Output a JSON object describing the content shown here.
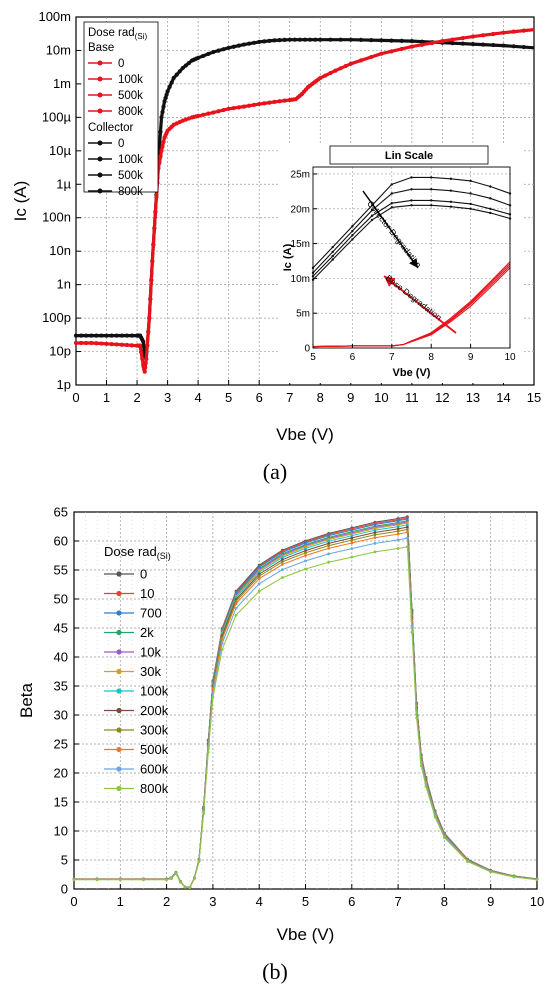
{
  "chart_data": [
    {
      "type": "line",
      "caption": "(a)",
      "xlabel": "Vbe (V)",
      "ylabel": "Ic (A)",
      "xlim": [
        0,
        15
      ],
      "ylim": [
        1e-12,
        0.1
      ],
      "yscale": "log",
      "grid": true,
      "x_ticks": [
        "0",
        "1",
        "2",
        "3",
        "4",
        "5",
        "6",
        "7",
        "8",
        "9",
        "10",
        "11",
        "12",
        "13",
        "14",
        "15"
      ],
      "y_ticks": [
        "1p",
        "10p",
        "100p",
        "1n",
        "10n",
        "100n",
        "1µ",
        "10µ",
        "100µ",
        "1m",
        "10m",
        "100m"
      ],
      "legend": {
        "position": "top-left",
        "title": "Dose rad",
        "title_sub": "(Si)",
        "groups": [
          {
            "name": "Base",
            "color": "#e8121b",
            "entries": [
              "0",
              "100k",
              "500k",
              "800k"
            ]
          },
          {
            "name": "Collector",
            "color": "#111111",
            "entries": [
              "0",
              "100k",
              "500k",
              "800k"
            ]
          }
        ]
      },
      "series": [
        {
          "group": "Collector",
          "color": "#111111",
          "x": [
            0,
            0.5,
            1,
            1.5,
            2,
            2.1,
            2.2,
            2.25,
            2.3,
            2.4,
            2.5,
            2.6,
            2.7,
            2.8,
            2.9,
            3,
            3.2,
            3.5,
            3.8,
            4,
            4.5,
            5,
            5.5,
            6,
            6.5,
            7,
            7.5,
            8,
            9,
            10,
            11,
            12,
            13,
            14,
            15
          ],
          "y": [
            3e-11,
            3e-11,
            3e-11,
            3e-11,
            3e-11,
            3e-11,
            2e-11,
            8e-12,
            6e-12,
            1e-10,
            5e-09,
            1.5e-07,
            5e-06,
            0.0001,
            0.0003,
            0.0006,
            0.0015,
            0.003,
            0.005,
            0.006,
            0.009,
            0.012,
            0.015,
            0.018,
            0.02,
            0.021,
            0.021,
            0.021,
            0.021,
            0.02,
            0.019,
            0.017,
            0.0155,
            0.014,
            0.012
          ]
        },
        {
          "group": "Base",
          "color": "#e8121b",
          "x": [
            0,
            0.5,
            1,
            1.5,
            2,
            2.1,
            2.2,
            2.25,
            2.3,
            2.4,
            2.5,
            2.6,
            2.7,
            2.8,
            2.9,
            3,
            3.2,
            3.5,
            3.8,
            4,
            4.5,
            5,
            5.5,
            6,
            6.5,
            7,
            7.2,
            7.4,
            7.6,
            7.8,
            8,
            8.5,
            9,
            10,
            11,
            12,
            13,
            14,
            15
          ],
          "y": [
            1.8e-11,
            1.8e-11,
            1.7e-11,
            1.6e-11,
            1.5e-11,
            1.5e-11,
            4e-12,
            2.5e-12,
            6e-12,
            1e-10,
            5e-09,
            1.5e-07,
            3e-06,
            1e-05,
            2.5e-05,
            4e-05,
            6e-05,
            8e-05,
            0.0001,
            0.00011,
            0.00014,
            0.00018,
            0.00021,
            0.00025,
            0.00029,
            0.00033,
            0.00035,
            0.0005,
            0.0008,
            0.0011,
            0.0015,
            0.0025,
            0.004,
            0.008,
            0.013,
            0.019,
            0.026,
            0.034,
            0.042
          ]
        }
      ],
      "inset": {
        "title": "Lin Scale",
        "xlabel": "Vbe (V)",
        "ylabel": "Ic (A)",
        "xlim": [
          5,
          10
        ],
        "ylim": [
          0,
          0.026
        ],
        "x_ticks": [
          "5",
          "6",
          "7",
          "8",
          "9",
          "10"
        ],
        "y_ticks": [
          "0",
          "5m",
          "10m",
          "15m",
          "20m",
          "25m"
        ],
        "annotations": [
          "Collector Degradation",
          "Base Degradation"
        ],
        "collector_series": [
          {
            "x": [
              5,
              5.5,
              6,
              6.5,
              7,
              7.5,
              8,
              8.5,
              9,
              9.5,
              10
            ],
            "y": [
              0.0115,
              0.0145,
              0.0175,
              0.0205,
              0.0235,
              0.0245,
              0.0245,
              0.0243,
              0.024,
              0.0232,
              0.0222
            ]
          },
          {
            "x": [
              5,
              5.5,
              6,
              6.5,
              7,
              7.5,
              8,
              8.5,
              9,
              9.5,
              10
            ],
            "y": [
              0.0108,
              0.0138,
              0.0168,
              0.0198,
              0.0222,
              0.0228,
              0.0228,
              0.0226,
              0.0222,
              0.0215,
              0.0205
            ]
          },
          {
            "x": [
              5,
              5.5,
              6,
              6.5,
              7,
              7.5,
              8,
              8.5,
              9,
              9.5,
              10
            ],
            "y": [
              0.0103,
              0.0132,
              0.0162,
              0.019,
              0.0208,
              0.0212,
              0.0212,
              0.021,
              0.0207,
              0.02,
              0.0192
            ]
          },
          {
            "x": [
              5,
              5.5,
              6,
              6.5,
              7,
              7.5,
              8,
              8.5,
              9,
              9.5,
              10
            ],
            "y": [
              0.0098,
              0.0127,
              0.0156,
              0.0184,
              0.0202,
              0.0205,
              0.0205,
              0.0203,
              0.02,
              0.0194,
              0.0186
            ]
          }
        ],
        "base_series": [
          {
            "x": [
              5,
              6,
              7,
              7.3,
              7.5,
              8,
              8.5,
              9,
              9.5,
              10
            ],
            "y": [
              0.0002,
              0.0003,
              0.0003,
              0.0005,
              0.001,
              0.0022,
              0.0043,
              0.0067,
              0.0095,
              0.0124
            ]
          },
          {
            "x": [
              5,
              6,
              7,
              7.3,
              7.5,
              8,
              8.5,
              9,
              9.5,
              10
            ],
            "y": [
              0.0002,
              0.0003,
              0.0003,
              0.0005,
              0.001,
              0.0021,
              0.0041,
              0.0065,
              0.0093,
              0.0121
            ]
          },
          {
            "x": [
              5,
              6,
              7,
              7.3,
              7.5,
              8,
              8.5,
              9,
              9.5,
              10
            ],
            "y": [
              0.0002,
              0.0003,
              0.0003,
              0.0005,
              0.001,
              0.002,
              0.004,
              0.0063,
              0.009,
              0.0118
            ]
          },
          {
            "x": [
              5,
              6,
              7,
              7.3,
              7.5,
              8,
              8.5,
              9,
              9.5,
              10
            ],
            "y": [
              0.0002,
              0.0003,
              0.0003,
              0.0005,
              0.0009,
              0.0019,
              0.0038,
              0.006,
              0.0087,
              0.0115
            ]
          }
        ]
      }
    },
    {
      "type": "line",
      "caption": "(b)",
      "xlabel": "Vbe (V)",
      "ylabel": "Beta",
      "xlim": [
        0,
        10
      ],
      "ylim": [
        0,
        65
      ],
      "grid": true,
      "x_ticks": [
        "0",
        "1",
        "2",
        "3",
        "4",
        "5",
        "6",
        "7",
        "8",
        "9",
        "10"
      ],
      "y_ticks": [
        "0",
        "5",
        "10",
        "15",
        "20",
        "25",
        "30",
        "35",
        "40",
        "45",
        "50",
        "55",
        "60",
        "65"
      ],
      "legend": {
        "position": "left",
        "title": "Dose rad",
        "title_sub": "(Si)"
      },
      "series": [
        {
          "name": "0",
          "color": "#555555",
          "max": 64.2
        },
        {
          "name": "10",
          "color": "#e8412c",
          "max": 64.0
        },
        {
          "name": "700",
          "color": "#2f7fd1",
          "max": 63.8
        },
        {
          "name": "2k",
          "color": "#22a46b",
          "max": 63.5
        },
        {
          "name": "10k",
          "color": "#9b59d0",
          "max": 63.3
        },
        {
          "name": "30k",
          "color": "#d4a017",
          "max": 63.1
        },
        {
          "name": "100k",
          "color": "#17c3c3",
          "max": 62.8
        },
        {
          "name": "200k",
          "color": "#7a4a3a",
          "max": 62.4
        },
        {
          "name": "300k",
          "color": "#8a8a1a",
          "max": 62.0
        },
        {
          "name": "500k",
          "color": "#f07820",
          "max": 61.5
        },
        {
          "name": "600k",
          "color": "#6aa6e8",
          "max": 60.5
        },
        {
          "name": "800k",
          "color": "#8cc63f",
          "max": 59.0
        }
      ],
      "shape": {
        "x": [
          0,
          0.5,
          1,
          1.5,
          2,
          2.1,
          2.2,
          2.3,
          2.4,
          2.5,
          2.6,
          2.7,
          2.8,
          2.9,
          3,
          3.2,
          3.5,
          4,
          4.5,
          5,
          5.5,
          6,
          6.5,
          7,
          7.2,
          7.3,
          7.4,
          7.5,
          7.6,
          7.8,
          8,
          8.5,
          9,
          9.5,
          10
        ],
        "f": [
          0.027,
          0.027,
          0.027,
          0.027,
          0.027,
          0.03,
          0.045,
          0.02,
          0.005,
          0.004,
          0.03,
          0.08,
          0.22,
          0.4,
          0.56,
          0.7,
          0.8,
          0.87,
          0.91,
          0.935,
          0.955,
          0.97,
          0.985,
          0.995,
          1.0,
          0.75,
          0.5,
          0.36,
          0.3,
          0.21,
          0.15,
          0.08,
          0.05,
          0.035,
          0.027
        ]
      }
    }
  ]
}
